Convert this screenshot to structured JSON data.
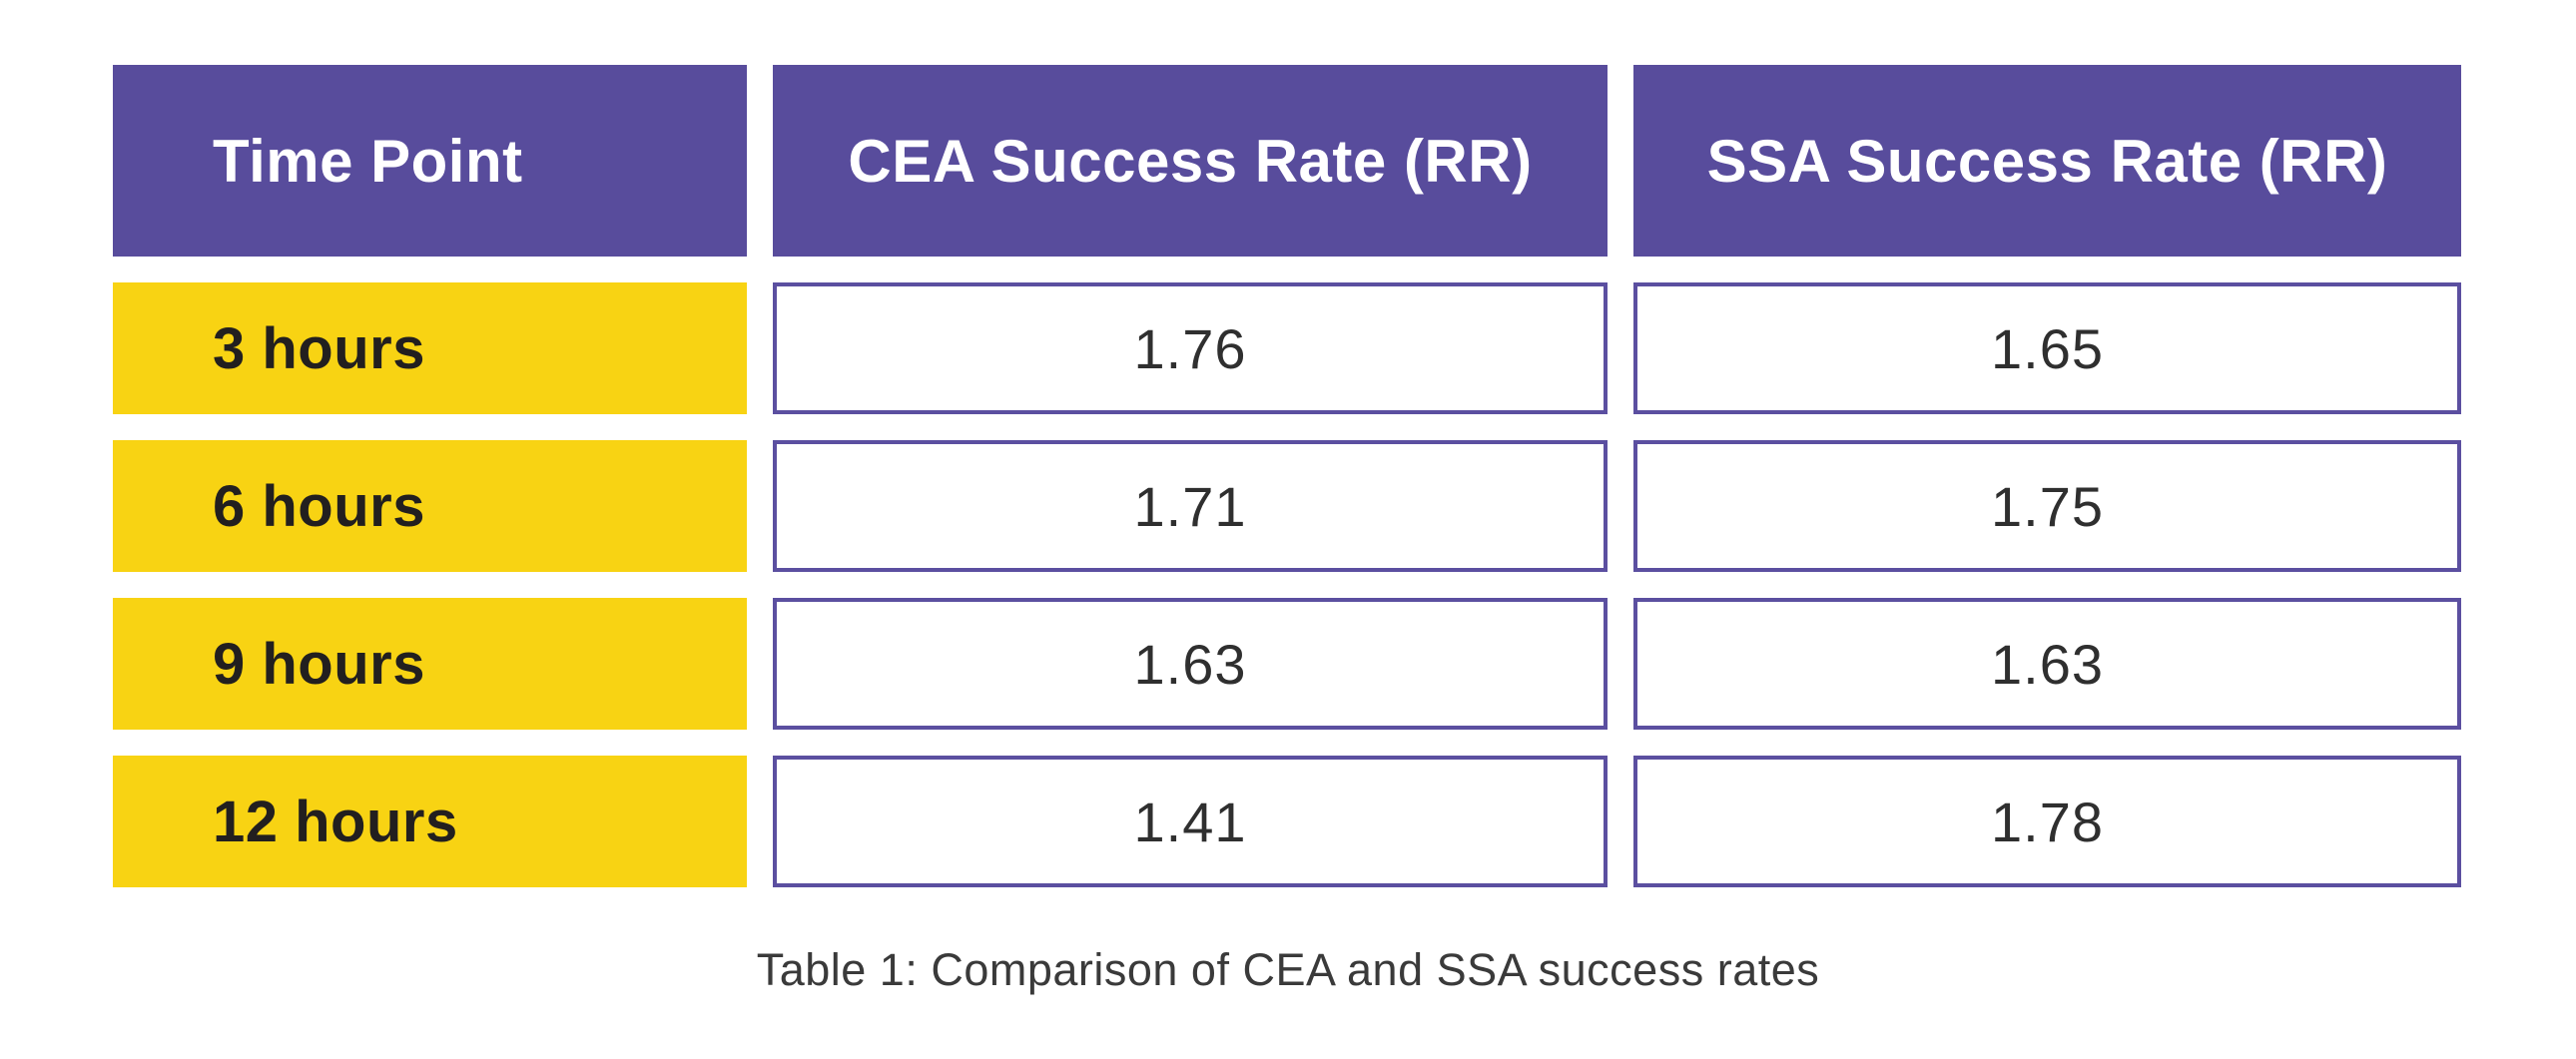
{
  "table": {
    "columns": [
      "Time Point",
      "CEA Success Rate (RR)",
      "SSA Success Rate (RR)"
    ],
    "rows": [
      {
        "label": "3 hours",
        "cea": "1.76",
        "ssa": "1.65"
      },
      {
        "label": "6 hours",
        "cea": "1.71",
        "ssa": "1.75"
      },
      {
        "label": "9 hours",
        "cea": "1.63",
        "ssa": "1.63"
      },
      {
        "label": "12 hours",
        "cea": "1.41",
        "ssa": "1.78"
      }
    ],
    "caption": "Table 1: Comparison of CEA and SSA success rates"
  },
  "colors": {
    "header_bg": "#584c9c",
    "header_text": "#ffffff",
    "row_label_bg": "#f8d313",
    "row_label_text": "#221f1f",
    "cell_border": "#5b4fa0",
    "cell_bg": "#ffffff",
    "cell_text": "#2f2f2f",
    "caption_text": "#3a3a3a",
    "page_bg": "#ffffff"
  },
  "chart_data": {
    "type": "table",
    "title": "Table 1: Comparison of CEA and SSA success rates",
    "columns": [
      "Time Point",
      "CEA Success Rate (RR)",
      "SSA Success Rate (RR)"
    ],
    "categories": [
      "3 hours",
      "6 hours",
      "9 hours",
      "12 hours"
    ],
    "series": [
      {
        "name": "CEA Success Rate (RR)",
        "values": [
          1.76,
          1.71,
          1.63,
          1.41
        ]
      },
      {
        "name": "SSA Success Rate (RR)",
        "values": [
          1.65,
          1.75,
          1.63,
          1.78
        ]
      }
    ],
    "rows": [
      [
        "3 hours",
        1.76,
        1.65
      ],
      [
        "6 hours",
        1.71,
        1.75
      ],
      [
        "9 hours",
        1.63,
        1.63
      ],
      [
        "12 hours",
        1.41,
        1.78
      ]
    ]
  }
}
